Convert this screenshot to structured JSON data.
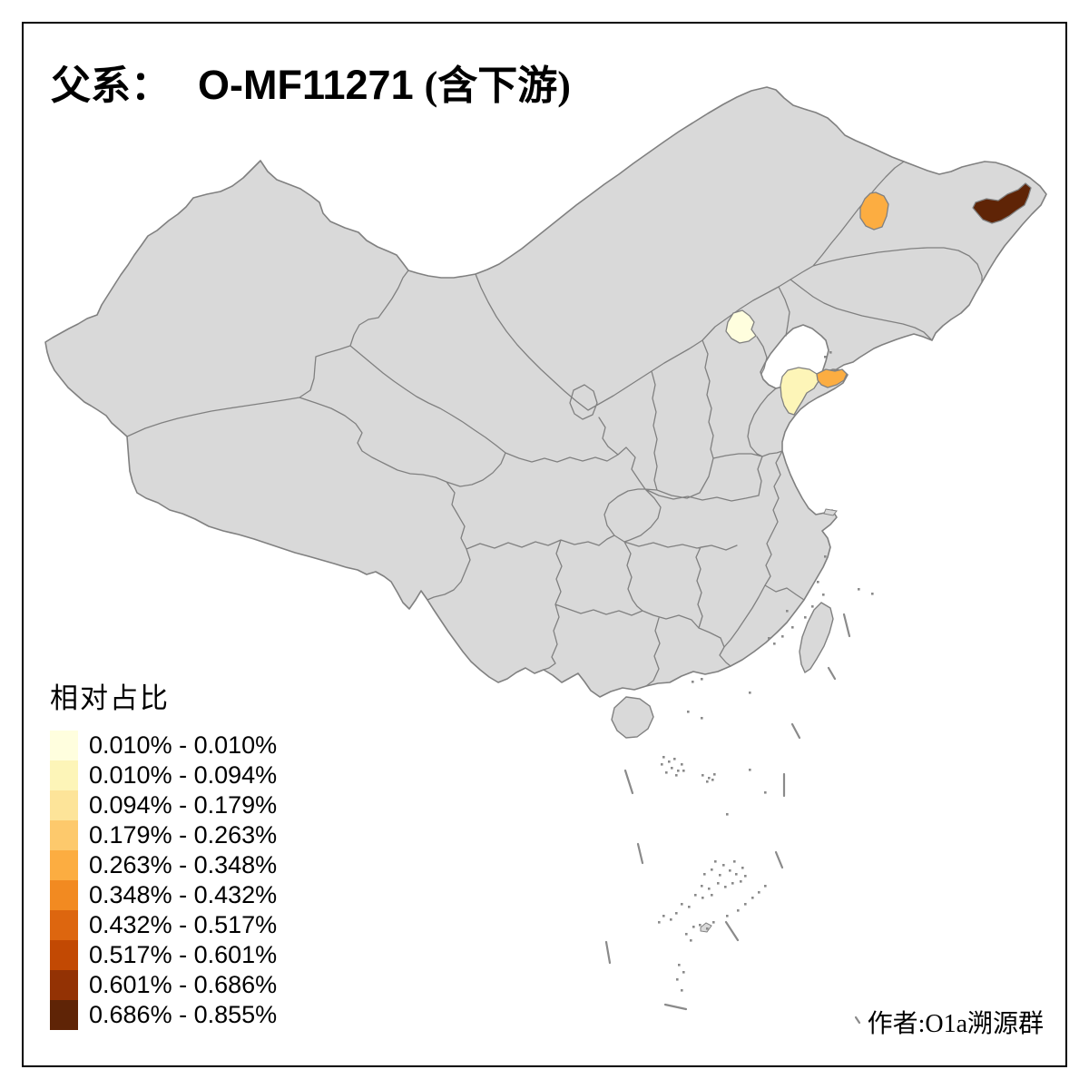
{
  "title": {
    "prefix": "父系：",
    "name": "O-MF11271",
    "suffix": "(含下游)"
  },
  "legend": {
    "title": "相对占比",
    "classes": [
      {
        "label": "0.010% - 0.010%",
        "color": "#FFFEDE"
      },
      {
        "label": "0.010% - 0.094%",
        "color": "#FDF5B8"
      },
      {
        "label": "0.094% - 0.179%",
        "color": "#FDE499"
      },
      {
        "label": "0.179% - 0.263%",
        "color": "#FDC96C"
      },
      {
        "label": "0.263% - 0.348%",
        "color": "#FCAD41"
      },
      {
        "label": "0.348% - 0.432%",
        "color": "#F28A21"
      },
      {
        "label": "0.432% - 0.517%",
        "color": "#DD660F"
      },
      {
        "label": "0.517% - 0.601%",
        "color": "#C24903"
      },
      {
        "label": "0.601% - 0.686%",
        "color": "#933204"
      },
      {
        "label": "0.686% - 0.855%",
        "color": "#5F2406"
      }
    ]
  },
  "credit": "作者:O1a溯源群",
  "map": {
    "land_fill": "#D9D9D9",
    "boundary_color": "#808080",
    "island_mark_color": "#8A8A8A",
    "frame_color": "#000000",
    "regions": [
      {
        "id": "beijing",
        "class_index": 0,
        "range": "0.010% - 0.010%"
      },
      {
        "id": "shandong-east",
        "class_index": 1,
        "range": "0.010% - 0.094%"
      },
      {
        "id": "weihai",
        "class_index": 4,
        "range": "0.263% - 0.348%"
      },
      {
        "id": "heilongjiang-west",
        "class_index": 4,
        "range": "0.263% - 0.348%"
      },
      {
        "id": "heilongjiang-east",
        "class_index": 9,
        "range": "0.686% - 0.855%"
      }
    ]
  },
  "chart_data": {
    "type": "choropleth-map",
    "title": "父系： O-MF11271 (含下游)",
    "legend_title": "相对占比",
    "value_unit": "%",
    "class_breaks": [
      0.01,
      0.01,
      0.094,
      0.179,
      0.263,
      0.348,
      0.432,
      0.517,
      0.601,
      0.686,
      0.855
    ],
    "regions": [
      {
        "name": "beijing",
        "range": "0.010% - 0.010%"
      },
      {
        "name": "shandong-east",
        "range": "0.010% - 0.094%"
      },
      {
        "name": "weihai",
        "range": "0.263% - 0.348%"
      },
      {
        "name": "heilongjiang-west",
        "range": "0.263% - 0.348%"
      },
      {
        "name": "heilongjiang-east",
        "range": "0.686% - 0.855%"
      }
    ]
  }
}
